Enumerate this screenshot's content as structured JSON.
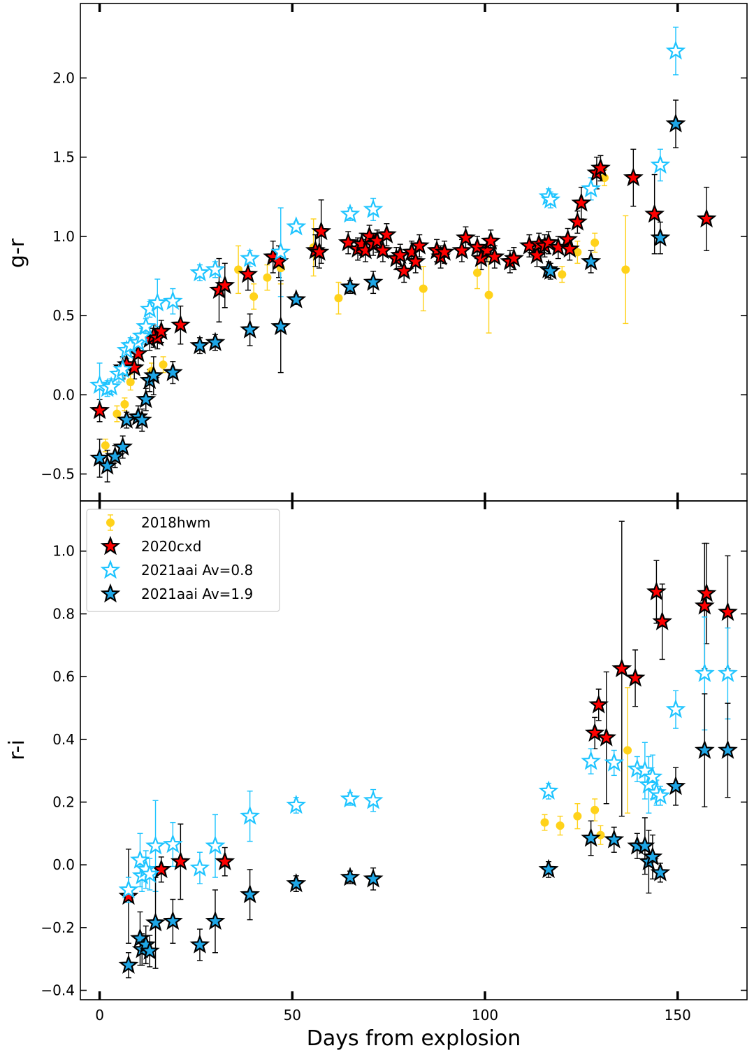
{
  "figure": {
    "xlabel": "Days from explosion",
    "xlim": [
      -5,
      168
    ],
    "xticks": [
      0,
      50,
      100,
      150
    ]
  },
  "colors": {
    "sn2018hwm": "#ffd21a",
    "sn2020cxd": "#ff0000",
    "sn2021aai_av08": "#1ec4ff",
    "sn2021aai_av19": "#1ea6e6",
    "edge": "#000000",
    "errorbar": "#000000"
  },
  "legend": {
    "position": "upper-left of lower panel",
    "entries": [
      {
        "label": "2018hwm",
        "marker": "circle",
        "color_key": "sn2018hwm"
      },
      {
        "label": "2020cxd",
        "marker": "star-filled",
        "color_key": "sn2020cxd"
      },
      {
        "label": "2021aai Av=0.8",
        "marker": "star-open",
        "color_key": "sn2021aai_av08"
      },
      {
        "label": "2021aai Av=1.9",
        "marker": "star-filled",
        "color_key": "sn2021aai_av19"
      }
    ]
  },
  "chart_data": [
    {
      "type": "scatter",
      "panel": "top",
      "ylabel": "g-r",
      "ylim": [
        -0.67,
        2.47
      ],
      "yticks": [
        -0.5,
        0.0,
        0.5,
        1.0,
        1.5,
        2.0
      ],
      "ytick_labels": [
        "−0.5",
        "0.0",
        "0.5",
        "1.0",
        "1.5",
        "2.0"
      ],
      "series": [
        {
          "name": "2018hwm",
          "points": [
            [
              1.5,
              -0.32,
              0.04
            ],
            [
              4.5,
              -0.12,
              0.05
            ],
            [
              6.5,
              -0.06,
              0.04
            ],
            [
              8,
              0.08,
              0.05
            ],
            [
              13.5,
              0.15,
              0.05
            ],
            [
              16.5,
              0.19,
              0.05
            ],
            [
              36,
              0.79,
              0.15
            ],
            [
              40,
              0.62,
              0.08
            ],
            [
              43.5,
              0.74,
              0.08
            ],
            [
              47,
              0.8,
              0.1
            ],
            [
              55.5,
              0.93,
              0.18
            ],
            [
              62,
              0.61,
              0.1
            ],
            [
              84,
              0.67,
              0.14
            ],
            [
              98,
              0.77,
              0.1
            ],
            [
              101,
              0.63,
              0.24
            ],
            [
              120,
              0.76,
              0.05
            ],
            [
              124,
              0.9,
              0.07
            ],
            [
              128.5,
              0.96,
              0.06
            ],
            [
              131,
              1.37,
              0.05
            ],
            [
              136.5,
              0.79,
              0.34
            ]
          ]
        },
        {
          "name": "2020cxd",
          "points": [
            [
              0,
              -0.1,
              0.07
            ],
            [
              6,
              0.17,
              0.07
            ],
            [
              7,
              0.19,
              0.07
            ],
            [
              9,
              0.17,
              0.07
            ],
            [
              10,
              0.26,
              0.07
            ],
            [
              13,
              0.35,
              0.07
            ],
            [
              14,
              0.37,
              0.07
            ],
            [
              15,
              0.36,
              0.07
            ],
            [
              16,
              0.4,
              0.07
            ],
            [
              21,
              0.44,
              0.12
            ],
            [
              31,
              0.66,
              0.2
            ],
            [
              32.5,
              0.69,
              0.14
            ],
            [
              38.5,
              0.76,
              0.1
            ],
            [
              45,
              0.87,
              0.1
            ],
            [
              46.5,
              0.84,
              0.1
            ],
            [
              56,
              0.91,
              0.1
            ],
            [
              57,
              0.9,
              0.1
            ],
            [
              57.5,
              1.03,
              0.2
            ],
            [
              64.5,
              0.96,
              0.07
            ],
            [
              67,
              0.92,
              0.07
            ],
            [
              68,
              0.95,
              0.07
            ],
            [
              69,
              0.91,
              0.07
            ],
            [
              70,
              1.0,
              0.07
            ],
            [
              71,
              0.95,
              0.07
            ],
            [
              72,
              0.97,
              0.07
            ],
            [
              73.5,
              0.91,
              0.07
            ],
            [
              74.5,
              1.01,
              0.07
            ],
            [
              77,
              0.86,
              0.07
            ],
            [
              78,
              0.88,
              0.07
            ],
            [
              79,
              0.78,
              0.07
            ],
            [
              81,
              0.9,
              0.07
            ],
            [
              82,
              0.84,
              0.07
            ],
            [
              83,
              0.94,
              0.07
            ],
            [
              87.5,
              0.91,
              0.07
            ],
            [
              88.5,
              0.87,
              0.07
            ],
            [
              89.5,
              0.9,
              0.07
            ],
            [
              94,
              0.91,
              0.07
            ],
            [
              95,
              0.99,
              0.07
            ],
            [
              98,
              0.93,
              0.07
            ],
            [
              99,
              0.86,
              0.07
            ],
            [
              100.5,
              0.91,
              0.07
            ],
            [
              101.5,
              0.97,
              0.07
            ],
            [
              102.5,
              0.87,
              0.07
            ],
            [
              106.5,
              0.84,
              0.07
            ],
            [
              107.5,
              0.86,
              0.07
            ],
            [
              111.5,
              0.94,
              0.07
            ],
            [
              113.5,
              0.88,
              0.07
            ],
            [
              114,
              0.95,
              0.07
            ],
            [
              115.5,
              0.94,
              0.07
            ],
            [
              116.5,
              0.96,
              0.07
            ],
            [
              119,
              0.93,
              0.07
            ],
            [
              121.5,
              0.98,
              0.07
            ],
            [
              122,
              0.92,
              0.07
            ],
            [
              124,
              1.09,
              0.07
            ],
            [
              125,
              1.21,
              0.1
            ],
            [
              129,
              1.4,
              0.1
            ],
            [
              130,
              1.43,
              0.08
            ],
            [
              138.5,
              1.37,
              0.18
            ],
            [
              144,
              1.14,
              0.25
            ],
            [
              157.5,
              1.11,
              0.2
            ]
          ]
        },
        {
          "name": "2021aai Av=0.8",
          "points": [
            [
              0,
              0.06,
              0.14
            ],
            [
              2,
              0.04,
              0.05
            ],
            [
              3,
              0.05,
              0.05
            ],
            [
              5,
              0.13,
              0.05
            ],
            [
              6,
              0.16,
              0.05
            ],
            [
              7,
              0.28,
              0.05
            ],
            [
              8,
              0.31,
              0.05
            ],
            [
              10,
              0.33,
              0.05
            ],
            [
              11,
              0.37,
              0.05
            ],
            [
              12,
              0.43,
              0.05
            ],
            [
              13,
              0.54,
              0.05
            ],
            [
              15,
              0.58,
              0.15
            ],
            [
              19,
              0.59,
              0.08
            ],
            [
              26,
              0.77,
              0.05
            ],
            [
              30,
              0.79,
              0.05
            ],
            [
              39,
              0.86,
              0.05
            ],
            [
              47,
              0.9,
              0.28
            ],
            [
              51,
              1.06,
              0.03
            ],
            [
              65,
              1.14,
              0.04
            ],
            [
              71,
              1.17,
              0.07
            ],
            [
              116.5,
              1.25,
              0.05
            ],
            [
              117,
              1.23,
              0.05
            ],
            [
              127.5,
              1.3,
              0.07
            ],
            [
              145.5,
              1.45,
              0.1
            ],
            [
              149.5,
              2.17,
              0.15
            ]
          ]
        },
        {
          "name": "2021aai Av=1.9",
          "points": [
            [
              0,
              -0.4,
              0.12
            ],
            [
              2,
              -0.45,
              0.1
            ],
            [
              4,
              -0.39,
              0.07
            ],
            [
              6,
              -0.33,
              0.07
            ],
            [
              7,
              -0.16,
              0.05
            ],
            [
              10,
              -0.14,
              0.07
            ],
            [
              11,
              -0.16,
              0.07
            ],
            [
              12,
              -0.03,
              0.07
            ],
            [
              13,
              0.09,
              0.07
            ],
            [
              14,
              0.12,
              0.12
            ],
            [
              19,
              0.14,
              0.07
            ],
            [
              26,
              0.31,
              0.05
            ],
            [
              30,
              0.33,
              0.05
            ],
            [
              39,
              0.41,
              0.1
            ],
            [
              47,
              0.43,
              0.29
            ],
            [
              51,
              0.6,
              0.03
            ],
            [
              65,
              0.68,
              0.04
            ],
            [
              71,
              0.71,
              0.07
            ],
            [
              116.5,
              0.79,
              0.05
            ],
            [
              117,
              0.78,
              0.05
            ],
            [
              127.5,
              0.84,
              0.07
            ],
            [
              145.5,
              0.99,
              0.1
            ],
            [
              149.5,
              1.71,
              0.15
            ]
          ]
        }
      ]
    },
    {
      "type": "scatter",
      "panel": "bottom",
      "ylabel": "r-i",
      "ylim": [
        -0.43,
        1.16
      ],
      "yticks": [
        -0.4,
        -0.2,
        0.0,
        0.2,
        0.4,
        0.6,
        0.8,
        1.0
      ],
      "ytick_labels": [
        "−0.4",
        "−0.2",
        "0.0",
        "0.2",
        "0.4",
        "0.6",
        "0.8",
        "1.0"
      ],
      "series": [
        {
          "name": "2018hwm",
          "points": [
            [
              115.5,
              0.135,
              0.025
            ],
            [
              119.5,
              0.125,
              0.03
            ],
            [
              124,
              0.155,
              0.04
            ],
            [
              128.5,
              0.175,
              0.035
            ],
            [
              130,
              0.095,
              0.03
            ],
            [
              137,
              0.365,
              0.2
            ]
          ]
        },
        {
          "name": "2020cxd",
          "points": [
            [
              7.5,
              -0.1,
              0.15
            ],
            [
              16,
              -0.015,
              0.04
            ],
            [
              21,
              0.01,
              0.12
            ],
            [
              32.5,
              0.01,
              0.045
            ],
            [
              128.5,
              0.42,
              0.05
            ],
            [
              129.5,
              0.51,
              0.05
            ],
            [
              131.5,
              0.405,
              0.21
            ],
            [
              135.5,
              0.625,
              0.47
            ],
            [
              139,
              0.595,
              0.09
            ],
            [
              144.5,
              0.87,
              0.1
            ],
            [
              146,
              0.775,
              0.12
            ],
            [
              157,
              0.825,
              0.2
            ],
            [
              157.5,
              0.865,
              0.16
            ],
            [
              163,
              0.805,
              0.18
            ]
          ]
        },
        {
          "name": "2021aai Av=0.8",
          "points": [
            [
              7.5,
              -0.08,
              0.04
            ],
            [
              10.5,
              0.015,
              0.085
            ],
            [
              11,
              -0.035,
              0.05
            ],
            [
              12,
              -0.015,
              0.06
            ],
            [
              13,
              -0.03,
              0.05
            ],
            [
              14.5,
              0.06,
              0.145
            ],
            [
              19,
              0.065,
              0.07
            ],
            [
              26,
              -0.01,
              0.05
            ],
            [
              30,
              0.06,
              0.1
            ],
            [
              39,
              0.155,
              0.08
            ],
            [
              51,
              0.19,
              0.025
            ],
            [
              65,
              0.21,
              0.02
            ],
            [
              71,
              0.205,
              0.035
            ],
            [
              116.5,
              0.235,
              0.025
            ],
            [
              127.5,
              0.33,
              0.04
            ],
            [
              133.5,
              0.325,
              0.04
            ],
            [
              139.5,
              0.305,
              0.04
            ],
            [
              141.5,
              0.3,
              0.09
            ],
            [
              142.5,
              0.255,
              0.09
            ],
            [
              143.5,
              0.28,
              0.07
            ],
            [
              144.5,
              0.23,
              0.04
            ],
            [
              145.5,
              0.22,
              0.03
            ],
            [
              149.5,
              0.495,
              0.06
            ],
            [
              157,
              0.61,
              0.18
            ],
            [
              163,
              0.61,
              0.145
            ]
          ]
        },
        {
          "name": "2021aai Av=1.9",
          "points": [
            [
              7.5,
              -0.32,
              0.04
            ],
            [
              10.5,
              -0.235,
              0.085
            ],
            [
              11,
              -0.27,
              0.05
            ],
            [
              12,
              -0.255,
              0.06
            ],
            [
              13,
              -0.275,
              0.05
            ],
            [
              14.5,
              -0.185,
              0.145
            ],
            [
              19,
              -0.18,
              0.07
            ],
            [
              26,
              -0.255,
              0.05
            ],
            [
              30,
              -0.18,
              0.1
            ],
            [
              39,
              -0.095,
              0.08
            ],
            [
              51,
              -0.06,
              0.025
            ],
            [
              65,
              -0.04,
              0.02
            ],
            [
              71,
              -0.045,
              0.035
            ],
            [
              116.5,
              -0.015,
              0.025
            ],
            [
              127.5,
              0.085,
              0.055
            ],
            [
              133.5,
              0.08,
              0.04
            ],
            [
              139.5,
              0.06,
              0.04
            ],
            [
              141.5,
              0.06,
              0.09
            ],
            [
              142.5,
              0.01,
              0.1
            ],
            [
              143.5,
              0.025,
              0.07
            ],
            [
              145.5,
              -0.025,
              0.03
            ],
            [
              149.5,
              0.25,
              0.06
            ],
            [
              157,
              0.365,
              0.18
            ],
            [
              163,
              0.365,
              0.15
            ]
          ]
        }
      ]
    }
  ]
}
